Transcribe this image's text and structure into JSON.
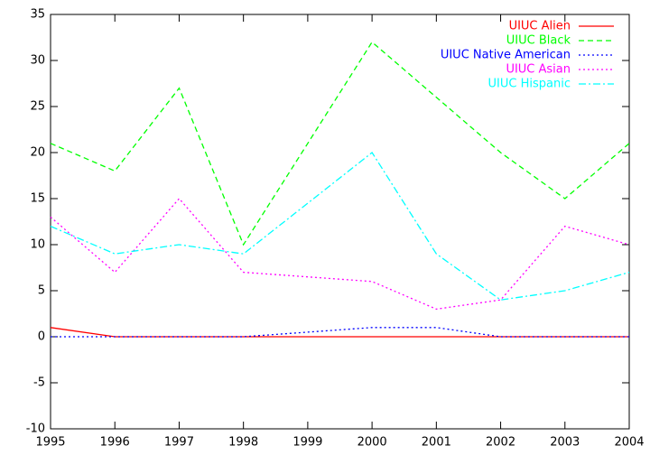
{
  "chart_data": {
    "type": "line",
    "x": [
      1995,
      1996,
      1997,
      1998,
      2000,
      2001,
      2002,
      2003,
      2004
    ],
    "series": [
      {
        "name": "UIUC Alien",
        "color": "#ff0000",
        "dash": "solid",
        "values": [
          1,
          0,
          0,
          0,
          0,
          0,
          0,
          0,
          0
        ]
      },
      {
        "name": "UIUC Black",
        "color": "#00ff00",
        "dash": "dashed",
        "values": [
          21,
          18,
          27,
          10,
          32,
          26,
          20,
          15,
          21
        ]
      },
      {
        "name": "UIUC Native American",
        "color": "#0000ff",
        "dash": "dotted",
        "values": [
          0,
          0,
          0,
          0,
          1,
          1,
          0,
          0,
          0
        ]
      },
      {
        "name": "UIUC Asian",
        "color": "#ff00ff",
        "dash": "dotted",
        "values": [
          13,
          7,
          15,
          7,
          6,
          3,
          4,
          12,
          10
        ]
      },
      {
        "name": "UIUC Hispanic",
        "color": "#00ffff",
        "dash": "dashdot",
        "values": [
          12,
          9,
          10,
          9,
          20,
          9,
          4,
          5,
          7
        ]
      }
    ],
    "xlim": [
      1995,
      2004
    ],
    "xticks": [
      1995,
      1996,
      1997,
      1998,
      1999,
      2000,
      2001,
      2002,
      2003,
      2004
    ],
    "ylim": [
      -10,
      35
    ],
    "yticks": [
      -10,
      -5,
      0,
      5,
      10,
      15,
      20,
      25,
      30,
      35
    ],
    "grid": false,
    "legend": "top-right"
  }
}
